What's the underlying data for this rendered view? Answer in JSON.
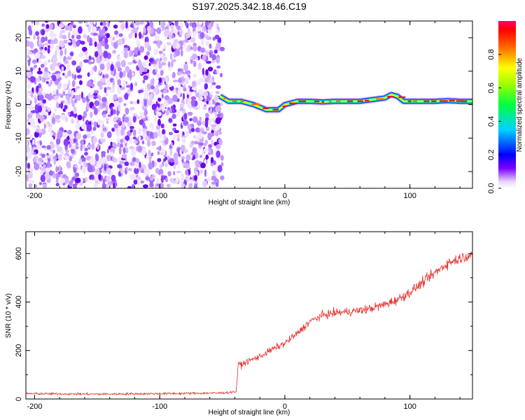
{
  "title": "S197.2025.342.18.46.C19",
  "chart_data": [
    {
      "type": "heatmap",
      "name": "spectrogram",
      "xlabel": "Height of straight line (km)",
      "ylabel": "Frequency (Hz)",
      "xlim": [
        -207,
        150
      ],
      "ylim": [
        -25,
        25
      ],
      "xticks": [
        -200,
        -100,
        0,
        100
      ],
      "yticks": [
        -20,
        -10,
        0,
        10,
        20
      ],
      "noise_region_x": [
        -207,
        -50
      ],
      "signal_trace": {
        "x": [
          -52,
          -45,
          -35,
          -25,
          -15,
          -5,
          0,
          10,
          20,
          30,
          40,
          50,
          60,
          70,
          80,
          85,
          90,
          95,
          100,
          110,
          120,
          130,
          140,
          150
        ],
        "freq": [
          2.5,
          1.0,
          1.0,
          0.0,
          -1.5,
          -1.5,
          0.0,
          1.0,
          1.0,
          0.8,
          1.0,
          1.0,
          1.0,
          1.5,
          2.0,
          3.0,
          2.5,
          1.0,
          1.0,
          1.0,
          1.0,
          1.2,
          1.0,
          1.0
        ]
      },
      "colorbar": {
        "label": "Normalized spectral amplitude",
        "range": [
          0,
          1
        ],
        "ticks": [
          "0.0",
          "0.2",
          "0.4",
          "0.6",
          "0.8"
        ]
      }
    },
    {
      "type": "line",
      "name": "snr",
      "xlabel": "Height of straight line (km)",
      "ylabel": "SNR (10 * v/v)",
      "xlim": [
        -207,
        150
      ],
      "ylim": [
        0,
        690
      ],
      "xticks": [
        -200,
        -100,
        0,
        100
      ],
      "yticks": [
        0,
        200,
        400,
        600
      ],
      "color": "#e8302c",
      "series": [
        {
          "name": "SNR",
          "x": [
            -207,
            -150,
            -100,
            -50,
            -39,
            -37,
            -35,
            -30,
            -20,
            -10,
            0,
            10,
            20,
            30,
            40,
            50,
            60,
            70,
            80,
            90,
            100,
            110,
            120,
            130,
            140,
            150
          ],
          "y": [
            22,
            20,
            22,
            25,
            30,
            150,
            140,
            155,
            175,
            205,
            230,
            270,
            320,
            345,
            355,
            360,
            365,
            375,
            390,
            410,
            440,
            480,
            520,
            560,
            580,
            600
          ]
        }
      ]
    }
  ]
}
